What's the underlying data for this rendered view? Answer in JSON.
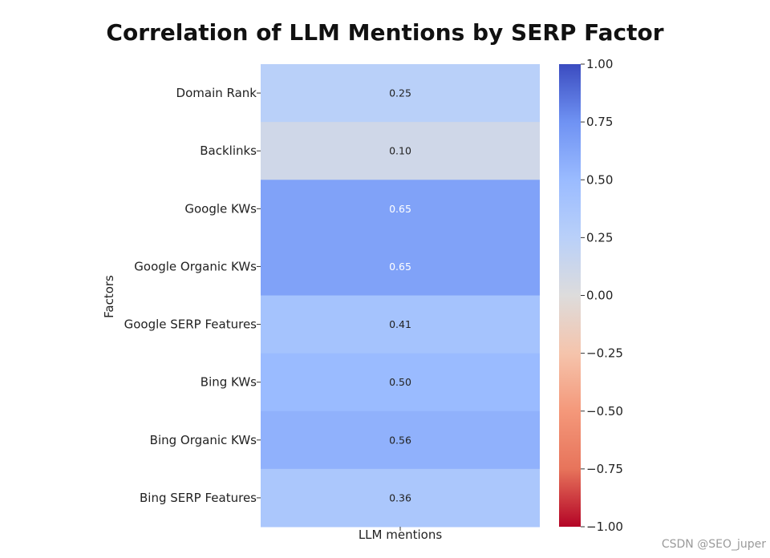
{
  "chart_data": {
    "type": "heatmap",
    "title": "Correlation of LLM Mentions by SERP Factor",
    "xlabel": "",
    "ylabel": "Factors",
    "columns": [
      "LLM mentions"
    ],
    "rows": [
      "Domain Rank",
      "Backlinks",
      "Google KWs",
      "Google Organic KWs",
      "Google SERP Features",
      "Bing KWs",
      "Bing Organic KWs",
      "Bing SERP Features"
    ],
    "values": [
      0.25,
      0.1,
      0.65,
      0.65,
      0.41,
      0.5,
      0.56,
      0.36
    ],
    "value_labels": [
      "0.25",
      "0.10",
      "0.65",
      "0.65",
      "0.41",
      "0.50",
      "0.56",
      "0.36"
    ],
    "colormap": "coolwarm",
    "vmin": -1.0,
    "vmax": 1.0,
    "colorbar_ticks": [
      1.0,
      0.75,
      0.5,
      0.25,
      0.0,
      -0.25,
      -0.5,
      -0.75,
      -1.0
    ],
    "colorbar_tick_labels": [
      "1.00",
      "0.75",
      "0.50",
      "0.25",
      "0.00",
      "−0.25",
      "−0.50",
      "−0.75",
      "−1.00"
    ]
  },
  "colors": {
    "cold": "#3b4cc0",
    "mid": "#dddcdc",
    "hot": "#b40426"
  },
  "watermark": "CSDN @SEO_juper"
}
